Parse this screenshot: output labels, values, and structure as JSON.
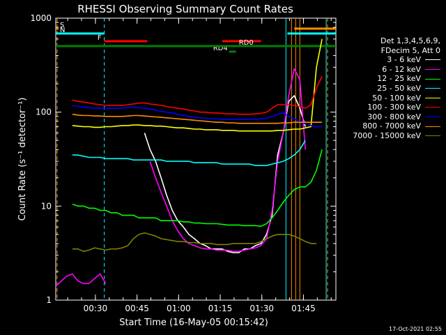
{
  "chart_data": {
    "type": "line",
    "title": "RHESSI Observing Summary Count Rates",
    "xlabel": "Start Time (16-May-05 00:15:42)",
    "ylabel": "Count Rate (s⁻¹ detector⁻¹)",
    "yscale": "log",
    "ylim": [
      1,
      1000
    ],
    "xlim_minutes_after_0015": [
      0,
      101
    ],
    "x_ticks": [
      "00:30",
      "00:45",
      "01:00",
      "01:15",
      "01:30",
      "01:45"
    ],
    "y_ticks": [
      "1",
      "10",
      "100",
      "1000"
    ],
    "legend_header": [
      "Det 1,3,4,5,6,9,",
      "FDecim 5, Att 0"
    ],
    "series": [
      {
        "name": "3 - 6 keV",
        "color": "#ffffff",
        "x": [
          0,
          2,
          4,
          6,
          8,
          10,
          12,
          14,
          16,
          18,
          20,
          22,
          24,
          26,
          28,
          30,
          32,
          34,
          36,
          38,
          40,
          42,
          44,
          46,
          48,
          50,
          52,
          54,
          56,
          58,
          60,
          62,
          64,
          66,
          68,
          70,
          72,
          74,
          76,
          78,
          80,
          82,
          84,
          86,
          88,
          90
        ],
        "y": [
          null,
          null,
          null,
          null,
          null,
          null,
          null,
          null,
          null,
          null,
          null,
          null,
          null,
          null,
          null,
          null,
          60,
          40,
          30,
          20,
          13,
          9,
          7,
          6,
          5,
          4.5,
          4,
          3.8,
          3.5,
          3.5,
          3.5,
          3.3,
          3.2,
          3.2,
          3.5,
          3.5,
          3.8,
          4,
          5,
          8,
          35,
          60,
          130,
          150,
          110,
          70
        ]
      },
      {
        "name": "6 - 12 keV",
        "color": "#ff00ff",
        "x": [
          0,
          2,
          4,
          6,
          8,
          10,
          12,
          14,
          16,
          18,
          20,
          22,
          24,
          26,
          28,
          30,
          32,
          34,
          36,
          38,
          40,
          42,
          44,
          46,
          48,
          50,
          52,
          54,
          56,
          58,
          60,
          62,
          64,
          66,
          68,
          70,
          72,
          74,
          76,
          78,
          80,
          82,
          84,
          86,
          88,
          90
        ],
        "y": [
          1.4,
          1.6,
          1.8,
          1.9,
          1.6,
          1.5,
          1.5,
          1.7,
          1.9,
          1.5,
          null,
          null,
          null,
          null,
          null,
          null,
          null,
          30,
          20,
          14,
          10,
          7,
          5.5,
          4.5,
          4,
          3.8,
          3.6,
          3.5,
          3.5,
          3.4,
          3.4,
          3.4,
          3.3,
          3.3,
          3.4,
          3.5,
          3.6,
          3.8,
          4.5,
          9,
          30,
          60,
          150,
          290,
          220,
          40
        ]
      },
      {
        "name": "12 - 25 keV",
        "color": "#00ff00",
        "x": [
          0,
          2,
          4,
          6,
          8,
          10,
          12,
          14,
          16,
          18,
          20,
          22,
          24,
          26,
          28,
          30,
          32,
          34,
          36,
          38,
          40,
          42,
          44,
          46,
          48,
          50,
          52,
          54,
          56,
          58,
          60,
          62,
          64,
          66,
          68,
          70,
          72,
          74,
          76,
          78,
          80,
          82,
          84,
          86,
          88,
          90,
          92,
          94,
          96
        ],
        "y": [
          null,
          null,
          null,
          10.5,
          10,
          10,
          9.5,
          9.5,
          9,
          9,
          8.5,
          8.5,
          8,
          8,
          8,
          7.5,
          7.5,
          7.5,
          7.5,
          7,
          7,
          7,
          7,
          6.8,
          6.8,
          6.6,
          6.6,
          6.5,
          6.5,
          6.5,
          6.4,
          6.3,
          6.3,
          6.3,
          6.2,
          6.2,
          6.2,
          6.1,
          6.5,
          7.5,
          9,
          11,
          13,
          15,
          16,
          16,
          18,
          24,
          40
        ]
      },
      {
        "name": "25 - 50 keV",
        "color": "#00ffff",
        "x": [
          0,
          2,
          4,
          6,
          8,
          10,
          12,
          14,
          16,
          18,
          20,
          22,
          24,
          26,
          28,
          30,
          32,
          34,
          36,
          38,
          40,
          42,
          44,
          46,
          48,
          50,
          52,
          54,
          56,
          58,
          60,
          62,
          64,
          66,
          68,
          70,
          72,
          74,
          76,
          78,
          80,
          82,
          84,
          86,
          88,
          90
        ],
        "y": [
          null,
          null,
          null,
          35,
          35,
          34,
          33,
          33,
          33,
          32,
          32,
          32,
          32,
          32,
          31,
          31,
          31,
          31,
          31,
          31,
          30,
          30,
          30,
          30,
          30,
          29,
          29,
          29,
          29,
          29,
          28,
          28,
          28,
          28,
          28,
          28,
          27,
          27,
          27,
          28,
          29,
          30,
          32,
          35,
          40,
          50
        ]
      },
      {
        "name": "50 - 100 keV",
        "color": "#ffff00",
        "x": [
          0,
          2,
          4,
          6,
          8,
          10,
          12,
          14,
          16,
          18,
          20,
          22,
          24,
          26,
          28,
          30,
          32,
          34,
          36,
          38,
          40,
          42,
          44,
          46,
          48,
          50,
          52,
          54,
          56,
          58,
          60,
          62,
          64,
          66,
          68,
          70,
          72,
          74,
          76,
          78,
          80,
          82,
          84,
          86,
          88,
          90,
          92,
          94,
          96
        ],
        "y": [
          null,
          null,
          null,
          72,
          71,
          70,
          70,
          69,
          69,
          70,
          70,
          71,
          72,
          72,
          73,
          73,
          72,
          72,
          71,
          71,
          70,
          69,
          68,
          68,
          67,
          66,
          66,
          65,
          65,
          65,
          64,
          64,
          64,
          63,
          63,
          63,
          63,
          63,
          63,
          63,
          64,
          64,
          65,
          66,
          66,
          68,
          70,
          300,
          600
        ]
      },
      {
        "name": "100 - 300 keV",
        "color": "#ff0000",
        "x": [
          0,
          2,
          4,
          6,
          8,
          10,
          12,
          14,
          16,
          18,
          20,
          22,
          24,
          26,
          28,
          30,
          32,
          34,
          36,
          38,
          40,
          42,
          44,
          46,
          48,
          50,
          52,
          54,
          56,
          58,
          60,
          62,
          64,
          66,
          68,
          70,
          72,
          74,
          76,
          78,
          80,
          82,
          84,
          86,
          88,
          90,
          92,
          94,
          96
        ],
        "y": [
          null,
          null,
          null,
          135,
          130,
          128,
          125,
          122,
          120,
          118,
          118,
          118,
          118,
          120,
          122,
          125,
          125,
          122,
          120,
          118,
          115,
          112,
          110,
          108,
          105,
          103,
          100,
          100,
          98,
          98,
          97,
          96,
          96,
          95,
          95,
          95,
          96,
          97,
          100,
          110,
          120,
          120,
          120,
          118,
          115,
          110,
          120,
          180,
          240
        ]
      },
      {
        "name": "300 - 800 keV",
        "color": "#0000ff",
        "x": [
          0,
          2,
          4,
          6,
          8,
          10,
          12,
          14,
          16,
          18,
          20,
          22,
          24,
          26,
          28,
          30,
          32,
          34,
          36,
          38,
          40,
          42,
          44,
          46,
          48,
          50,
          52,
          54,
          56,
          58,
          60,
          62,
          64,
          66,
          68,
          70,
          72,
          74,
          76,
          78,
          80,
          82,
          84,
          86,
          88,
          90,
          92,
          94,
          96
        ],
        "y": [
          null,
          null,
          null,
          118,
          115,
          113,
          112,
          110,
          110,
          110,
          110,
          110,
          110,
          112,
          113,
          112,
          110,
          108,
          105,
          102,
          100,
          98,
          95,
          93,
          90,
          88,
          87,
          86,
          85,
          85,
          84,
          84,
          84,
          84,
          84,
          84,
          84,
          85,
          86,
          90,
          95,
          98,
          90,
          85,
          80,
          75,
          72,
          70,
          70
        ]
      },
      {
        "name": "800 - 7000 keV",
        "color": "#ff8c00",
        "x": [
          0,
          2,
          4,
          6,
          8,
          10,
          12,
          14,
          16,
          18,
          20,
          22,
          24,
          26,
          28,
          30,
          32,
          34,
          36,
          38,
          40,
          42,
          44,
          46,
          48,
          50,
          52,
          54,
          56,
          58,
          60,
          62,
          64,
          66,
          68,
          70,
          72,
          74,
          76,
          78,
          80,
          82,
          84,
          86,
          88,
          90,
          92,
          94,
          96
        ],
        "y": [
          null,
          null,
          null,
          95,
          93,
          92,
          92,
          91,
          91,
          90,
          90,
          90,
          90,
          91,
          92,
          92,
          91,
          90,
          89,
          88,
          87,
          86,
          85,
          84,
          83,
          82,
          81,
          80,
          79,
          78,
          78,
          77,
          77,
          76,
          76,
          76,
          76,
          76,
          76,
          76,
          76,
          77,
          77,
          78,
          78,
          78,
          78,
          78,
          78
        ]
      },
      {
        "name": "7000 - 15000 keV",
        "color": "#808000",
        "x": [
          0,
          2,
          4,
          6,
          8,
          10,
          12,
          14,
          16,
          18,
          20,
          22,
          24,
          26,
          28,
          30,
          32,
          34,
          36,
          38,
          40,
          42,
          44,
          46,
          48,
          50,
          52,
          54,
          56,
          58,
          60,
          62,
          64,
          66,
          68,
          70,
          72,
          74,
          76,
          78,
          80,
          82,
          84,
          86,
          88,
          90,
          92,
          94
        ],
        "y": [
          null,
          null,
          null,
          3.5,
          3.5,
          3.3,
          3.4,
          3.6,
          3.5,
          3.4,
          3.5,
          3.5,
          3.6,
          3.8,
          4.5,
          5,
          5.2,
          5,
          4.8,
          4.5,
          4.4,
          4.3,
          4.2,
          4.2,
          4.1,
          4.1,
          4,
          4,
          4,
          3.9,
          3.9,
          3.9,
          4,
          4,
          4,
          4,
          4,
          4.2,
          4.5,
          4.8,
          5,
          5,
          5,
          4.8,
          4.5,
          4.2,
          4,
          4
        ]
      }
    ],
    "flag_bars": [
      {
        "label": "S",
        "color": "#ff8c00",
        "x": [
          0,
          1
        ],
        "row": 1
      },
      {
        "label": "N",
        "color": "#00ffff",
        "x": [
          0,
          17.5
        ],
        "row": 2
      },
      {
        "label": "",
        "color": "#00ffff",
        "x": [
          83.5,
          101
        ],
        "row": 2
      },
      {
        "label": "F",
        "color": "#ff0000",
        "x": [
          17.5,
          33
        ],
        "row": 3
      },
      {
        "label": "",
        "color": "#ff0000",
        "x": [
          60,
          74
        ],
        "row": 3
      },
      {
        "label": "",
        "color": "#ff8c00",
        "x": [
          86,
          101
        ],
        "row": 1
      },
      {
        "label": "RD0",
        "color": "#008000",
        "x": [
          64.5,
          66
        ],
        "row": 5
      },
      {
        "label": "RD4",
        "color": "#008000",
        "x": [
          62.5,
          65
        ],
        "row": 6
      },
      {
        "label": "",
        "color": "#008000",
        "x": [
          0,
          101
        ],
        "row": 4
      }
    ],
    "vlines": [
      {
        "color": "#ff8c00",
        "x": 0.5,
        "dash": true
      },
      {
        "color": "#00ffff",
        "x": 17.5,
        "dash": true
      },
      {
        "color": "#00ffff",
        "x": 83,
        "dash": false
      },
      {
        "color": "#ff8c00",
        "x": 85,
        "dash": false
      },
      {
        "color": "#ff8c00",
        "x": 86.5,
        "dash": false
      },
      {
        "color": "#ff8c00",
        "x": 88,
        "dash": false
      },
      {
        "color": "#00ffff",
        "x": 97.5,
        "dash": false
      },
      {
        "color": "#ff8c00",
        "x": 98,
        "dash": true
      }
    ],
    "grid": false,
    "legend_position": "right"
  },
  "timestamp": "17-Oct-2021 02:55"
}
